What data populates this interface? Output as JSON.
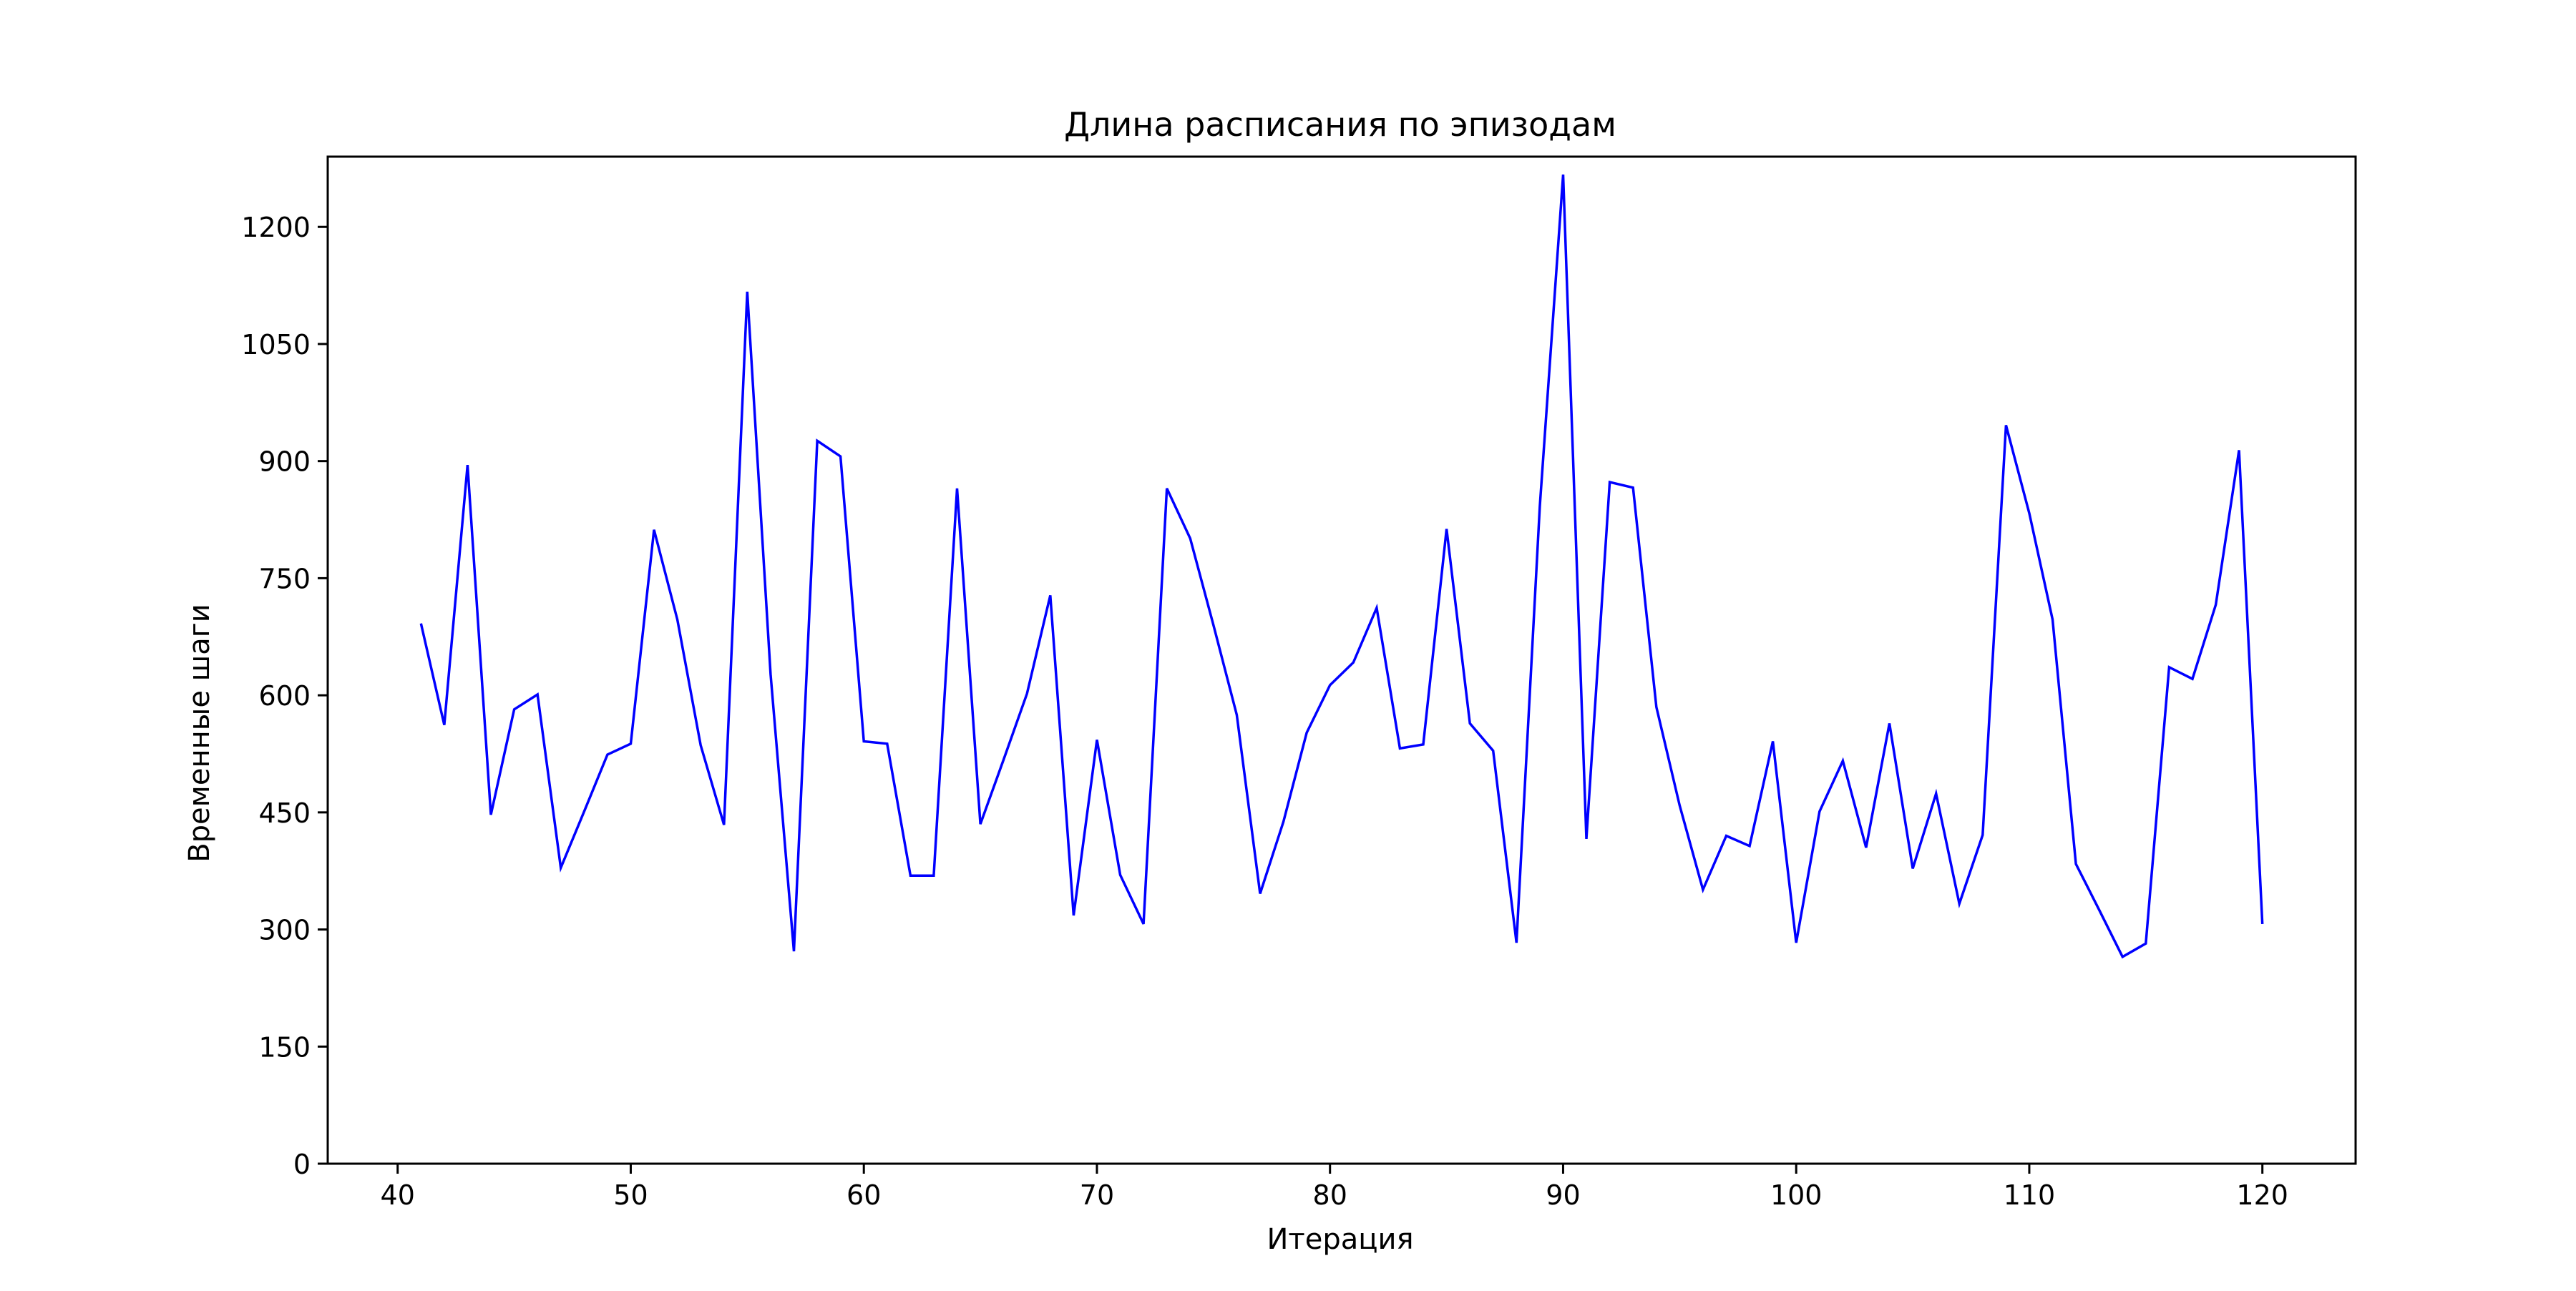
{
  "chart_data": {
    "type": "line",
    "title": "Длина расписания по эпизодам",
    "xlabel": "Итерация",
    "ylabel": "Временные шаги",
    "xlim": [
      37,
      124
    ],
    "ylim": [
      0,
      1290
    ],
    "xticks": [
      40,
      50,
      60,
      70,
      80,
      90,
      100,
      110,
      120
    ],
    "yticks": [
      0,
      150,
      300,
      450,
      600,
      750,
      900,
      1050,
      1200
    ],
    "grid": false,
    "legend": "none",
    "colors": {
      "line": "#0000ff",
      "axes": "#000000",
      "background": "#ffffff"
    },
    "series": [
      {
        "x": [
          41,
          42,
          43,
          44,
          45,
          46,
          47,
          48,
          49,
          50,
          51,
          52,
          53,
          54,
          55,
          56,
          57,
          58,
          59,
          60,
          61,
          62,
          63,
          64,
          65,
          66,
          67,
          68,
          69,
          70,
          71,
          72,
          73,
          74,
          75,
          76,
          77,
          78,
          79,
          80,
          81,
          82,
          83,
          84,
          85,
          86,
          87,
          88,
          89,
          90,
          91,
          92,
          93,
          94,
          95,
          96,
          97,
          98,
          99,
          100,
          101,
          102,
          103,
          104,
          105,
          106,
          107,
          108,
          109,
          110,
          111,
          112,
          113,
          114,
          115,
          116,
          117,
          118,
          119,
          120
        ],
        "y": [
          692,
          562,
          895,
          447,
          582,
          601,
          379,
          451,
          524,
          538,
          812,
          697,
          536,
          434,
          1117,
          627,
          272,
          926,
          906,
          541,
          538,
          369,
          369,
          865,
          435,
          518,
          602,
          728,
          318,
          543,
          370,
          307,
          865,
          801,
          690,
          575,
          346,
          438,
          552,
          613,
          642,
          712,
          532,
          537,
          813,
          564,
          529,
          283,
          842,
          1267,
          416,
          873,
          866,
          585,
          459,
          351,
          420,
          407,
          541,
          283,
          451,
          516,
          405,
          564,
          378,
          474,
          333,
          421,
          946,
          833,
          697,
          384,
          325,
          265,
          282,
          636,
          621,
          716,
          914,
          307
        ]
      }
    ]
  }
}
